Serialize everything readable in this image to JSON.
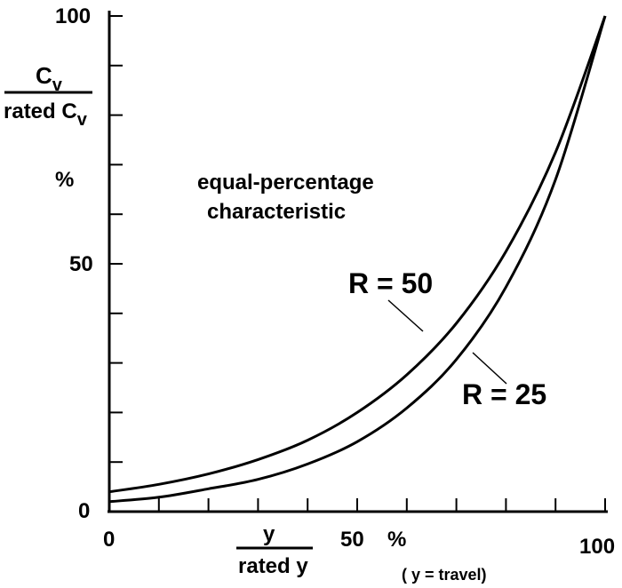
{
  "chart_data": {
    "type": "line",
    "title": "equal-percentage characteristic",
    "title_line1": "equal-percentage",
    "title_line2": "characteristic",
    "xlim": [
      0,
      100
    ],
    "ylim": [
      0,
      100
    ],
    "x_ticks": [
      "0",
      "50",
      "100"
    ],
    "y_ticks": [
      "0",
      "50",
      "100"
    ],
    "xlabel": {
      "numerator": "y",
      "denominator": "rated y",
      "unit": "%",
      "note": "( y = travel)"
    },
    "ylabel": {
      "numerator": "C",
      "numerator_sub": "v",
      "denominator": "rated C",
      "denominator_sub": "v",
      "unit": "%"
    },
    "grid": false,
    "series": [
      {
        "name": "R = 50",
        "rangeability": 50,
        "x": [
          0,
          10,
          20,
          30,
          40,
          50,
          60,
          70,
          80,
          90,
          100
        ],
        "values": [
          2.0,
          2.9,
          4.6,
          6.5,
          9.6,
          14.1,
          20.9,
          30.7,
          45.3,
          67.0,
          100.0
        ]
      },
      {
        "name": "R = 25",
        "rangeability": 25,
        "x": [
          0,
          10,
          20,
          30,
          40,
          50,
          60,
          70,
          80,
          90,
          100
        ],
        "values": [
          4.0,
          5.5,
          7.6,
          10.5,
          14.4,
          20.0,
          27.6,
          38.0,
          52.5,
          72.5,
          100.0
        ]
      }
    ]
  }
}
